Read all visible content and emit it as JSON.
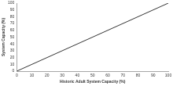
{
  "chart_data": {
    "type": "line",
    "x_label": "Historic Adult System Capacity (%)",
    "y_label": "System Capacity (%)",
    "x": [
      0,
      100
    ],
    "values": [
      0,
      100
    ],
    "color": "#333333",
    "xlim": [
      0,
      100
    ],
    "ylim": [
      0,
      100
    ],
    "xticks": [
      0,
      10,
      20,
      30,
      40,
      50,
      60,
      70,
      80,
      90,
      100
    ],
    "yticks": [
      0,
      10,
      20,
      30,
      40,
      50,
      60,
      70,
      80,
      90,
      100
    ],
    "grid": false
  }
}
